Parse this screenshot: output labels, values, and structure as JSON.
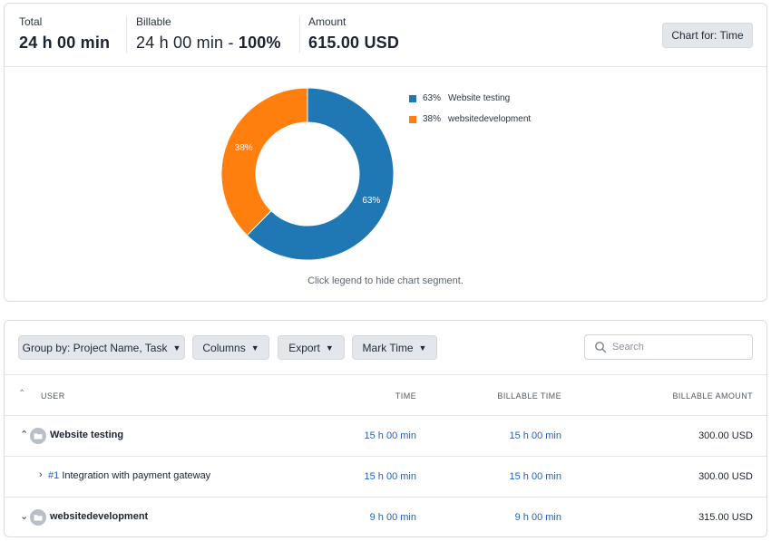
{
  "summary": {
    "total_label": "Total",
    "total_value": "24 h 00 min",
    "billable_label": "Billable",
    "billable_value": "24 h 00 min - ",
    "billable_percent": "100%",
    "amount_label": "Amount",
    "amount_value": "615.00 USD",
    "chart_for_button": "Chart for: Time"
  },
  "chart_data": {
    "type": "pie",
    "donut": true,
    "categories": [
      "Website testing",
      "websitedevelopment"
    ],
    "values": [
      63,
      38
    ],
    "value_labels": [
      "63%",
      "38%"
    ],
    "colors": [
      "#1f77b4",
      "#ff7f0e"
    ],
    "legend_position": "right",
    "legend": [
      {
        "pct": "63%",
        "label": "Website testing",
        "color": "#1f77b4"
      },
      {
        "pct": "38%",
        "label": "websitedevelopment",
        "color": "#ff7f0e"
      }
    ],
    "hint": "Click legend to hide chart segment."
  },
  "toolbar": {
    "group_by": "Group by: Project Name, Task",
    "columns": "Columns",
    "export": "Export",
    "mark_time": "Mark Time",
    "search_placeholder": "Search"
  },
  "table": {
    "headers": {
      "user": "USER",
      "time": "TIME",
      "billable_time": "BILLABLE TIME",
      "billable_amount": "BILLABLE AMOUNT"
    },
    "rows": [
      {
        "name": "Website testing",
        "time": "15 h 00 min",
        "billable_time": "15 h 00 min",
        "amount": "300.00 USD"
      },
      {
        "task_num": "#1",
        "name": "Integration with payment gateway",
        "time": "15 h 00 min",
        "billable_time": "15 h 00 min",
        "amount": "300.00 USD"
      },
      {
        "name": "websitedevelopment",
        "time": "9 h 00 min",
        "billable_time": "9 h 00 min",
        "amount": "315.00 USD"
      }
    ]
  }
}
